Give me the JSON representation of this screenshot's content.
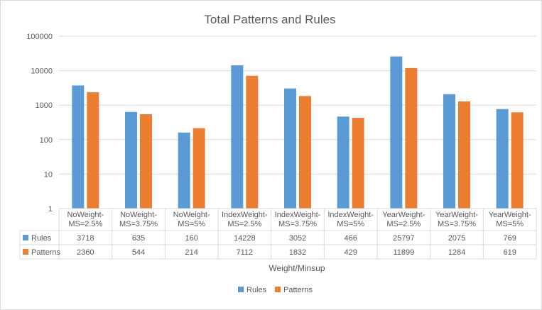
{
  "chart_data": {
    "type": "bar",
    "title": "Total Patterns and Rules",
    "xlabel": "Weight/Minsup",
    "ylabel": "",
    "yscale": "log",
    "ylim": [
      1,
      100000
    ],
    "yticks": [
      "1",
      "10",
      "100",
      "1000",
      "10000",
      "100000"
    ],
    "grid": true,
    "legend": "bottom",
    "categories": [
      [
        "NoWeight-",
        "MS=2.5%"
      ],
      [
        "NoWeight-",
        "MS=3.75%"
      ],
      [
        "NoWeight-",
        "MS=5%"
      ],
      [
        "IndexWeight-",
        "MS=2.5%"
      ],
      [
        "IndexWeight-",
        "MS=3.75%"
      ],
      [
        "IndexWeight-",
        "MS=5%"
      ],
      [
        "YearWeight-",
        "MS=2.5%"
      ],
      [
        "YearWeight-",
        "MS=3.75%"
      ],
      [
        "YearWeight-",
        "MS=5%"
      ]
    ],
    "series": [
      {
        "name": "Rules",
        "color": "#5b9bd5",
        "values": [
          3718,
          635,
          160,
          14228,
          3052,
          466,
          25797,
          2075,
          769
        ]
      },
      {
        "name": "Patterns",
        "color": "#ed7d31",
        "values": [
          2360,
          544,
          214,
          7112,
          1832,
          429,
          11899,
          1284,
          619
        ]
      }
    ]
  }
}
